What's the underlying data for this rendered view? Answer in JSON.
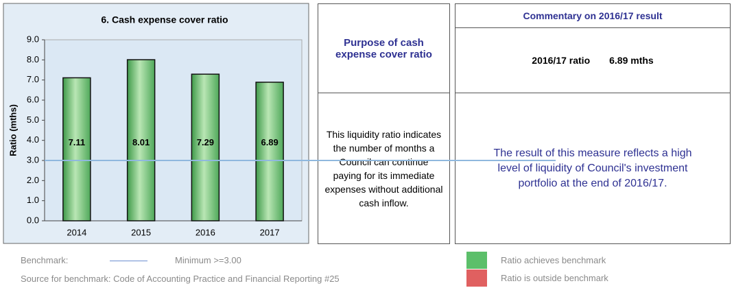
{
  "chart_data": {
    "type": "bar",
    "title": "6. Cash expense cover ratio",
    "y_label": "Ratio (mths)",
    "categories": [
      "2014",
      "2015",
      "2016",
      "2017"
    ],
    "values": [
      7.11,
      8.01,
      7.29,
      6.89
    ],
    "color": "#6dbf6d",
    "ylim": [
      0,
      9
    ],
    "yticks": [
      {
        "value": 0,
        "label": "0.0"
      },
      {
        "value": 1,
        "label": "1.0"
      },
      {
        "value": 2,
        "label": "2.0"
      },
      {
        "value": 3,
        "label": "3.0"
      },
      {
        "value": 4,
        "label": "4.0"
      },
      {
        "value": 5,
        "label": "5.0"
      },
      {
        "value": 6,
        "label": "6.0"
      },
      {
        "value": 7,
        "label": "7.0"
      },
      {
        "value": 8,
        "label": "8.0"
      },
      {
        "value": 9,
        "label": "9.0"
      }
    ],
    "benchmark": 3,
    "benchmark_color": "#8fb8de",
    "grid": false
  },
  "purpose": {
    "title": "Purpose of cash expense cover ratio",
    "text": "This liquidity ratio indicates the number of months a Council can continue paying for its immediate expenses without additional cash inflow."
  },
  "commentary": {
    "title": "Commentary on 2016/17 result",
    "ratio_label": "2016/17 ratio",
    "ratio_value": "6.89 mths",
    "text": "The result of this measure reflects a high level of liquidity of Council's investment portfolio at the end of 2016/17."
  },
  "footer": {
    "benchmark_label": "Benchmark:",
    "benchmark_text": "Minimum  >=3.00",
    "source": "Source for benchmark: Code of Accounting Practice and Financial Reporting #25",
    "legend": [
      {
        "label": "Ratio achieves benchmark",
        "color": "#5cbf6a"
      },
      {
        "label": "Ratio is outside benchmark",
        "color": "#e06060"
      }
    ]
  }
}
